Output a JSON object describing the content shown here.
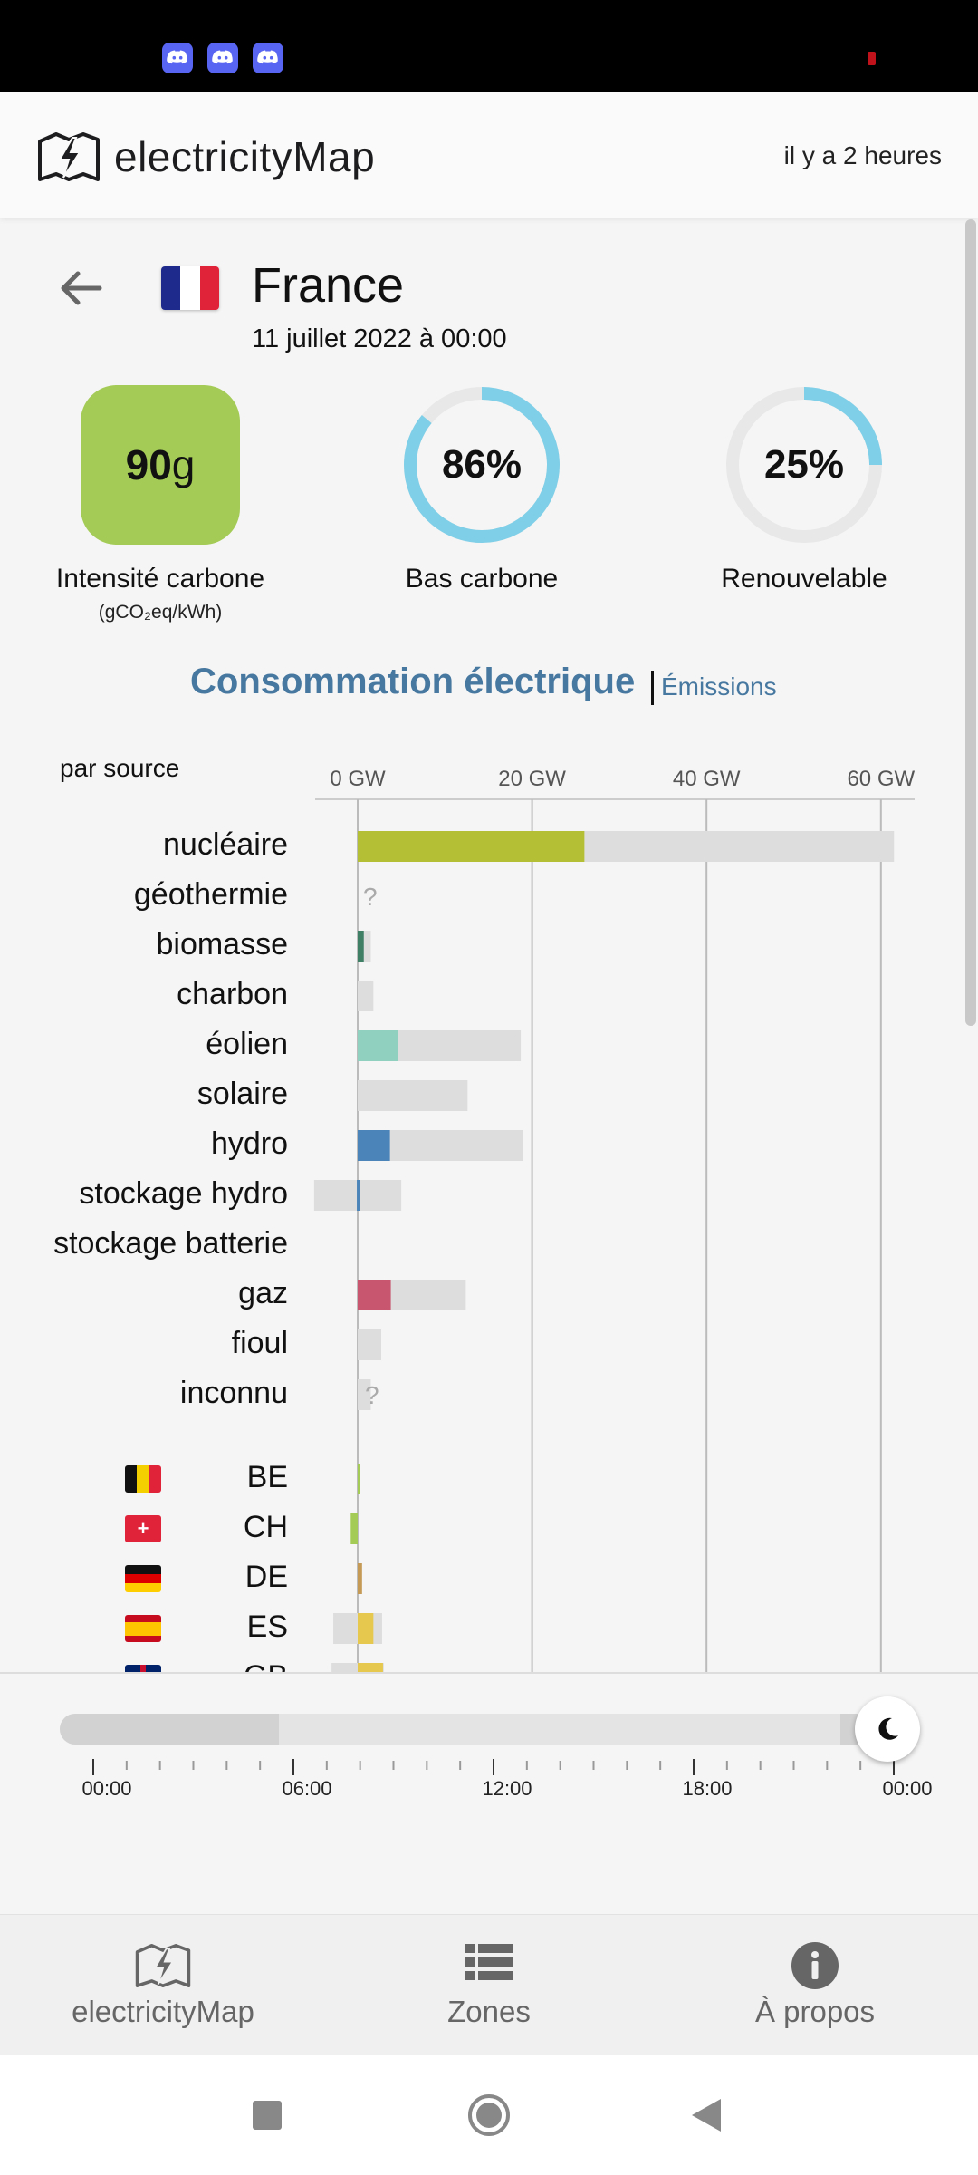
{
  "app": {
    "title": "electricityMap",
    "updated": "il y a 2 heures"
  },
  "zone": {
    "country": "France",
    "date": "11 juillet 2022 à 00:00"
  },
  "metrics": {
    "carbon_value": "90",
    "carbon_unit": "g",
    "carbon_label": "Intensité carbone",
    "carbon_sublabel": "(gCO₂eq/kWh)",
    "carbon_color": "#a3cb55",
    "low_carbon_pct": "86%",
    "low_carbon_fraction": 0.86,
    "low_carbon_label": "Bas carbone",
    "renewable_pct": "25%",
    "renewable_fraction": 0.25,
    "renewable_label": "Renouvelable",
    "ring_color": "#7fcfe8"
  },
  "section": {
    "title": "Consommation électrique",
    "link": "Émissions"
  },
  "chart_data": {
    "type": "bar",
    "subtitle": "par source",
    "tick_labels": [
      "0 GW",
      "20 GW",
      "40 GW",
      "60 GW"
    ],
    "xlim": [
      -5,
      63
    ],
    "categories": [
      "nucléaire",
      "géothermie",
      "biomasse",
      "charbon",
      "éolien",
      "solaire",
      "hydro",
      "stockage hydro",
      "stockage batterie",
      "gaz",
      "fioul",
      "inconnu"
    ],
    "series": [
      {
        "values": [
          26,
          null,
          0.7,
          0,
          4.6,
          0,
          3.7,
          -0.1,
          null,
          3.8,
          0,
          null
        ]
      },
      {
        "values": [
          61.5,
          null,
          1.5,
          1.8,
          18.7,
          12.6,
          19.0,
          -5.0,
          null,
          12.4,
          2.7,
          1.5
        ]
      }
    ],
    "range_min": [
      0,
      null,
      0,
      0,
      0,
      0,
      0,
      -5.0,
      null,
      0,
      0,
      0
    ],
    "range_max": [
      61.5,
      null,
      1.5,
      1.8,
      18.7,
      12.6,
      19.0,
      5.0,
      null,
      12.4,
      2.7,
      1.5
    ],
    "unknown_marker": "?",
    "unknown_rows": [
      "géothermie",
      "inconnu"
    ],
    "colors": {
      "nucléaire": "#b5bf35",
      "biomasse": "#3e7f66",
      "éolien": "#8fd1be",
      "hydro": "#4a84b8",
      "stockage hydro": "#4a84b8",
      "gaz": "#c9566f",
      "background": "#dddddd"
    },
    "exchanges": {
      "categories": [
        "BE",
        "CH",
        "DE",
        "ES",
        "GB"
      ],
      "values": [
        0.1,
        -0.8,
        0.5,
        1.8,
        2.9
      ],
      "capacity_min": [
        0,
        0,
        0,
        -2.8,
        -3.0
      ],
      "capacity_max": [
        0,
        0,
        0,
        2.8,
        3.0
      ],
      "colors": [
        "#a3cb55",
        "#a3cb55",
        "#c49a55",
        "#e6c84f",
        "#e6c84f"
      ]
    }
  },
  "timeline": {
    "labels": [
      "00:00",
      "06:00",
      "12:00",
      "18:00",
      "00:00"
    ],
    "position_fraction": 1.0,
    "night_icon": "moon-icon"
  },
  "nav": {
    "items": [
      {
        "label": "electricityMap",
        "icon": "lightning-map-icon"
      },
      {
        "label": "Zones",
        "icon": "list-icon"
      },
      {
        "label": "À propos",
        "icon": "info-icon"
      }
    ]
  }
}
